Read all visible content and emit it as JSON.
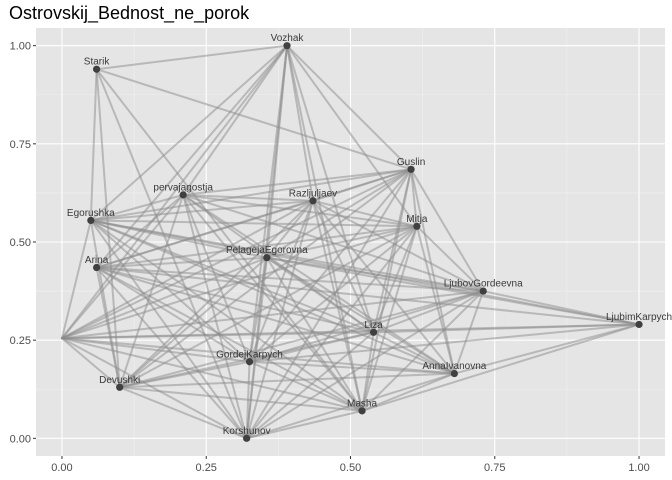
{
  "chart_data": {
    "type": "network",
    "title": "Ostrovskij_Bednost_ne_porok",
    "xlim": [
      -0.045,
      1.045
    ],
    "ylim": [
      -0.045,
      1.045
    ],
    "x_ticks": [
      0.0,
      0.25,
      0.5,
      0.75,
      1.0
    ],
    "x_tick_labels": [
      "0.00",
      "0.25",
      "0.50",
      "0.75",
      "1.00"
    ],
    "y_ticks": [
      0.0,
      0.25,
      0.5,
      0.75,
      1.0
    ],
    "y_tick_labels": [
      "0.00",
      "0.25",
      "0.50",
      "0.75",
      "1.00"
    ],
    "grid": true,
    "colors": {
      "panel_background": "#e5e5e5",
      "grid_major": "#ffffff",
      "edge": "#8c8c8c",
      "node": "#404040"
    },
    "nodes": [
      {
        "id": "Vozhak",
        "label": "Vozhak",
        "x": 0.39,
        "y": 1.0
      },
      {
        "id": "Starik",
        "label": "Starik",
        "x": 0.06,
        "y": 0.94
      },
      {
        "id": "Guslin",
        "label": "Guslin",
        "x": 0.605,
        "y": 0.685
      },
      {
        "id": "pervajagostja",
        "label": "pervajagostja",
        "x": 0.21,
        "y": 0.62
      },
      {
        "id": "Razljuljaev",
        "label": "Razljuljaev",
        "x": 0.435,
        "y": 0.605
      },
      {
        "id": "Egorushka",
        "label": "Egorushka",
        "x": 0.05,
        "y": 0.555
      },
      {
        "id": "Mitja",
        "label": "Mitja",
        "x": 0.615,
        "y": 0.54
      },
      {
        "id": "PelagejaEgorovna",
        "label": "PelagejaEgorovna",
        "x": 0.355,
        "y": 0.46
      },
      {
        "id": "Arina",
        "label": "Arina",
        "x": 0.06,
        "y": 0.435
      },
      {
        "id": "LjubovGordeevna",
        "label": "LjubovGordeevna",
        "x": 0.73,
        "y": 0.375
      },
      {
        "id": "LjubimKarpych",
        "label": "LjubimKarpych",
        "x": 1.0,
        "y": 0.29
      },
      {
        "id": "Liza",
        "label": "Liza",
        "x": 0.54,
        "y": 0.27
      },
      {
        "id": "GordejKarpych",
        "label": "GordejKarpych",
        "x": 0.325,
        "y": 0.195
      },
      {
        "id": "AnnaIvanovna",
        "label": "AnnaIvanovna",
        "x": 0.68,
        "y": 0.165
      },
      {
        "id": "Devushki",
        "label": "Devushki",
        "x": 0.1,
        "y": 0.13
      },
      {
        "id": "Masha",
        "label": "Masha",
        "x": 0.52,
        "y": 0.07
      },
      {
        "id": "Korshunov",
        "label": "Korshunov",
        "x": 0.32,
        "y": 0.0
      },
      {
        "id": "Gosti",
        "label": "",
        "x": 0.0,
        "y": 0.255
      }
    ],
    "edges": [
      [
        "Starik",
        "Vozhak"
      ],
      [
        "Starik",
        "Guslin"
      ],
      [
        "Starik",
        "Egorushka"
      ],
      [
        "Starik",
        "Devushki"
      ],
      [
        "Starik",
        "Korshunov"
      ],
      [
        "Starik",
        "Masha"
      ],
      [
        "Vozhak",
        "Guslin"
      ],
      [
        "Vozhak",
        "pervajagostja"
      ],
      [
        "Vozhak",
        "Egorushka"
      ],
      [
        "Vozhak",
        "Arina"
      ],
      [
        "Vozhak",
        "PelagejaEgorovna"
      ],
      [
        "Vozhak",
        "GordejKarpych"
      ],
      [
        "Vozhak",
        "Korshunov"
      ],
      [
        "Vozhak",
        "Masha"
      ],
      [
        "Vozhak",
        "Liza"
      ],
      [
        "Vozhak",
        "Razljuljaev"
      ],
      [
        "Vozhak",
        "Mitja"
      ],
      [
        "Vozhak",
        "Gosti"
      ],
      [
        "Guslin",
        "pervajagostja"
      ],
      [
        "Guslin",
        "Egorushka"
      ],
      [
        "Guslin",
        "Arina"
      ],
      [
        "Guslin",
        "PelagejaEgorovna"
      ],
      [
        "Guslin",
        "GordejKarpych"
      ],
      [
        "Guslin",
        "Korshunov"
      ],
      [
        "Guslin",
        "Masha"
      ],
      [
        "Guslin",
        "Liza"
      ],
      [
        "Guslin",
        "AnnaIvanovna"
      ],
      [
        "Guslin",
        "LjubovGordeevna"
      ],
      [
        "Guslin",
        "Mitja"
      ],
      [
        "Guslin",
        "Razljuljaev"
      ],
      [
        "Guslin",
        "Devushki"
      ],
      [
        "Guslin",
        "Gosti"
      ],
      [
        "pervajagostja",
        "Egorushka"
      ],
      [
        "pervajagostja",
        "Arina"
      ],
      [
        "pervajagostja",
        "Mitja"
      ],
      [
        "pervajagostja",
        "Razljuljaev"
      ],
      [
        "pervajagostja",
        "LjubovGordeevna"
      ],
      [
        "pervajagostja",
        "Masha"
      ],
      [
        "pervajagostja",
        "Korshunov"
      ],
      [
        "pervajagostja",
        "Devushki"
      ],
      [
        "pervajagostja",
        "Gosti"
      ],
      [
        "pervajagostja",
        "AnnaIvanovna"
      ],
      [
        "pervajagostja",
        "Liza"
      ],
      [
        "pervajagostja",
        "GordejKarpych"
      ],
      [
        "Razljuljaev",
        "Egorushka"
      ],
      [
        "Razljuljaev",
        "Arina"
      ],
      [
        "Razljuljaev",
        "Mitja"
      ],
      [
        "Razljuljaev",
        "PelagejaEgorovna"
      ],
      [
        "Razljuljaev",
        "LjubovGordeevna"
      ],
      [
        "Razljuljaev",
        "GordejKarpych"
      ],
      [
        "Razljuljaev",
        "Korshunov"
      ],
      [
        "Razljuljaev",
        "Masha"
      ],
      [
        "Razljuljaev",
        "Liza"
      ],
      [
        "Razljuljaev",
        "AnnaIvanovna"
      ],
      [
        "Razljuljaev",
        "Gosti"
      ],
      [
        "Razljuljaev",
        "Devushki"
      ],
      [
        "Egorushka",
        "Mitja"
      ],
      [
        "Egorushka",
        "PelagejaEgorovna"
      ],
      [
        "Egorushka",
        "LjubovGordeevna"
      ],
      [
        "Egorushka",
        "Liza"
      ],
      [
        "Egorushka",
        "AnnaIvanovna"
      ],
      [
        "Egorushka",
        "Masha"
      ],
      [
        "Egorushka",
        "Korshunov"
      ],
      [
        "Egorushka",
        "Devushki"
      ],
      [
        "Egorushka",
        "GordejKarpych"
      ],
      [
        "Egorushka",
        "Gosti"
      ],
      [
        "Egorushka",
        "LjubimKarpych"
      ],
      [
        "Mitja",
        "Arina"
      ],
      [
        "Mitja",
        "PelagejaEgorovna"
      ],
      [
        "Mitja",
        "LjubovGordeevna"
      ],
      [
        "Mitja",
        "GordejKarpych"
      ],
      [
        "Mitja",
        "Korshunov"
      ],
      [
        "Mitja",
        "Masha"
      ],
      [
        "Mitja",
        "Devushki"
      ],
      [
        "Mitja",
        "Gosti"
      ],
      [
        "Mitja",
        "Liza"
      ],
      [
        "Mitja",
        "AnnaIvanovna"
      ],
      [
        "PelagejaEgorovna",
        "Arina"
      ],
      [
        "PelagejaEgorovna",
        "LjubovGordeevna"
      ],
      [
        "PelagejaEgorovna",
        "LjubimKarpych"
      ],
      [
        "PelagejaEgorovna",
        "Liza"
      ],
      [
        "PelagejaEgorovna",
        "GordejKarpych"
      ],
      [
        "PelagejaEgorovna",
        "AnnaIvanovna"
      ],
      [
        "PelagejaEgorovna",
        "Devushki"
      ],
      [
        "PelagejaEgorovna",
        "Masha"
      ],
      [
        "PelagejaEgorovna",
        "Korshunov"
      ],
      [
        "PelagejaEgorovna",
        "Gosti"
      ],
      [
        "Arina",
        "LjubovGordeevna"
      ],
      [
        "Arina",
        "LjubimKarpych"
      ],
      [
        "Arina",
        "Liza"
      ],
      [
        "Arina",
        "AnnaIvanovna"
      ],
      [
        "Arina",
        "Masha"
      ],
      [
        "Arina",
        "Korshunov"
      ],
      [
        "Arina",
        "Devushki"
      ],
      [
        "Arina",
        "GordejKarpych"
      ],
      [
        "LjubovGordeevna",
        "LjubimKarpych"
      ],
      [
        "LjubovGordeevna",
        "Liza"
      ],
      [
        "LjubovGordeevna",
        "GordejKarpych"
      ],
      [
        "LjubovGordeevna",
        "Masha"
      ],
      [
        "LjubovGordeevna",
        "Korshunov"
      ],
      [
        "LjubovGordeevna",
        "Devushki"
      ],
      [
        "LjubovGordeevna",
        "Gosti"
      ],
      [
        "LjubovGordeevna",
        "AnnaIvanovna"
      ],
      [
        "LjubimKarpych",
        "Liza"
      ],
      [
        "LjubimKarpych",
        "AnnaIvanovna"
      ],
      [
        "LjubimKarpych",
        "Masha"
      ],
      [
        "LjubimKarpych",
        "Gosti"
      ],
      [
        "LjubimKarpych",
        "GordejKarpych"
      ],
      [
        "Liza",
        "GordejKarpych"
      ],
      [
        "Liza",
        "AnnaIvanovna"
      ],
      [
        "Liza",
        "Masha"
      ],
      [
        "Liza",
        "Korshunov"
      ],
      [
        "Liza",
        "Devushki"
      ],
      [
        "Liza",
        "Gosti"
      ],
      [
        "GordejKarpych",
        "Korshunov"
      ],
      [
        "GordejKarpych",
        "Masha"
      ],
      [
        "GordejKarpych",
        "AnnaIvanovna"
      ],
      [
        "GordejKarpych",
        "Devushki"
      ],
      [
        "GordejKarpych",
        "Gosti"
      ],
      [
        "AnnaIvanovna",
        "Masha"
      ],
      [
        "AnnaIvanovna",
        "Korshunov"
      ],
      [
        "AnnaIvanovna",
        "Devushki"
      ],
      [
        "AnnaIvanovna",
        "Gosti"
      ],
      [
        "Devushki",
        "Masha"
      ],
      [
        "Devushki",
        "Korshunov"
      ],
      [
        "Devushki",
        "Gosti"
      ],
      [
        "Masha",
        "Korshunov"
      ],
      [
        "Masha",
        "Gosti"
      ],
      [
        "Korshunov",
        "Gosti"
      ]
    ]
  }
}
